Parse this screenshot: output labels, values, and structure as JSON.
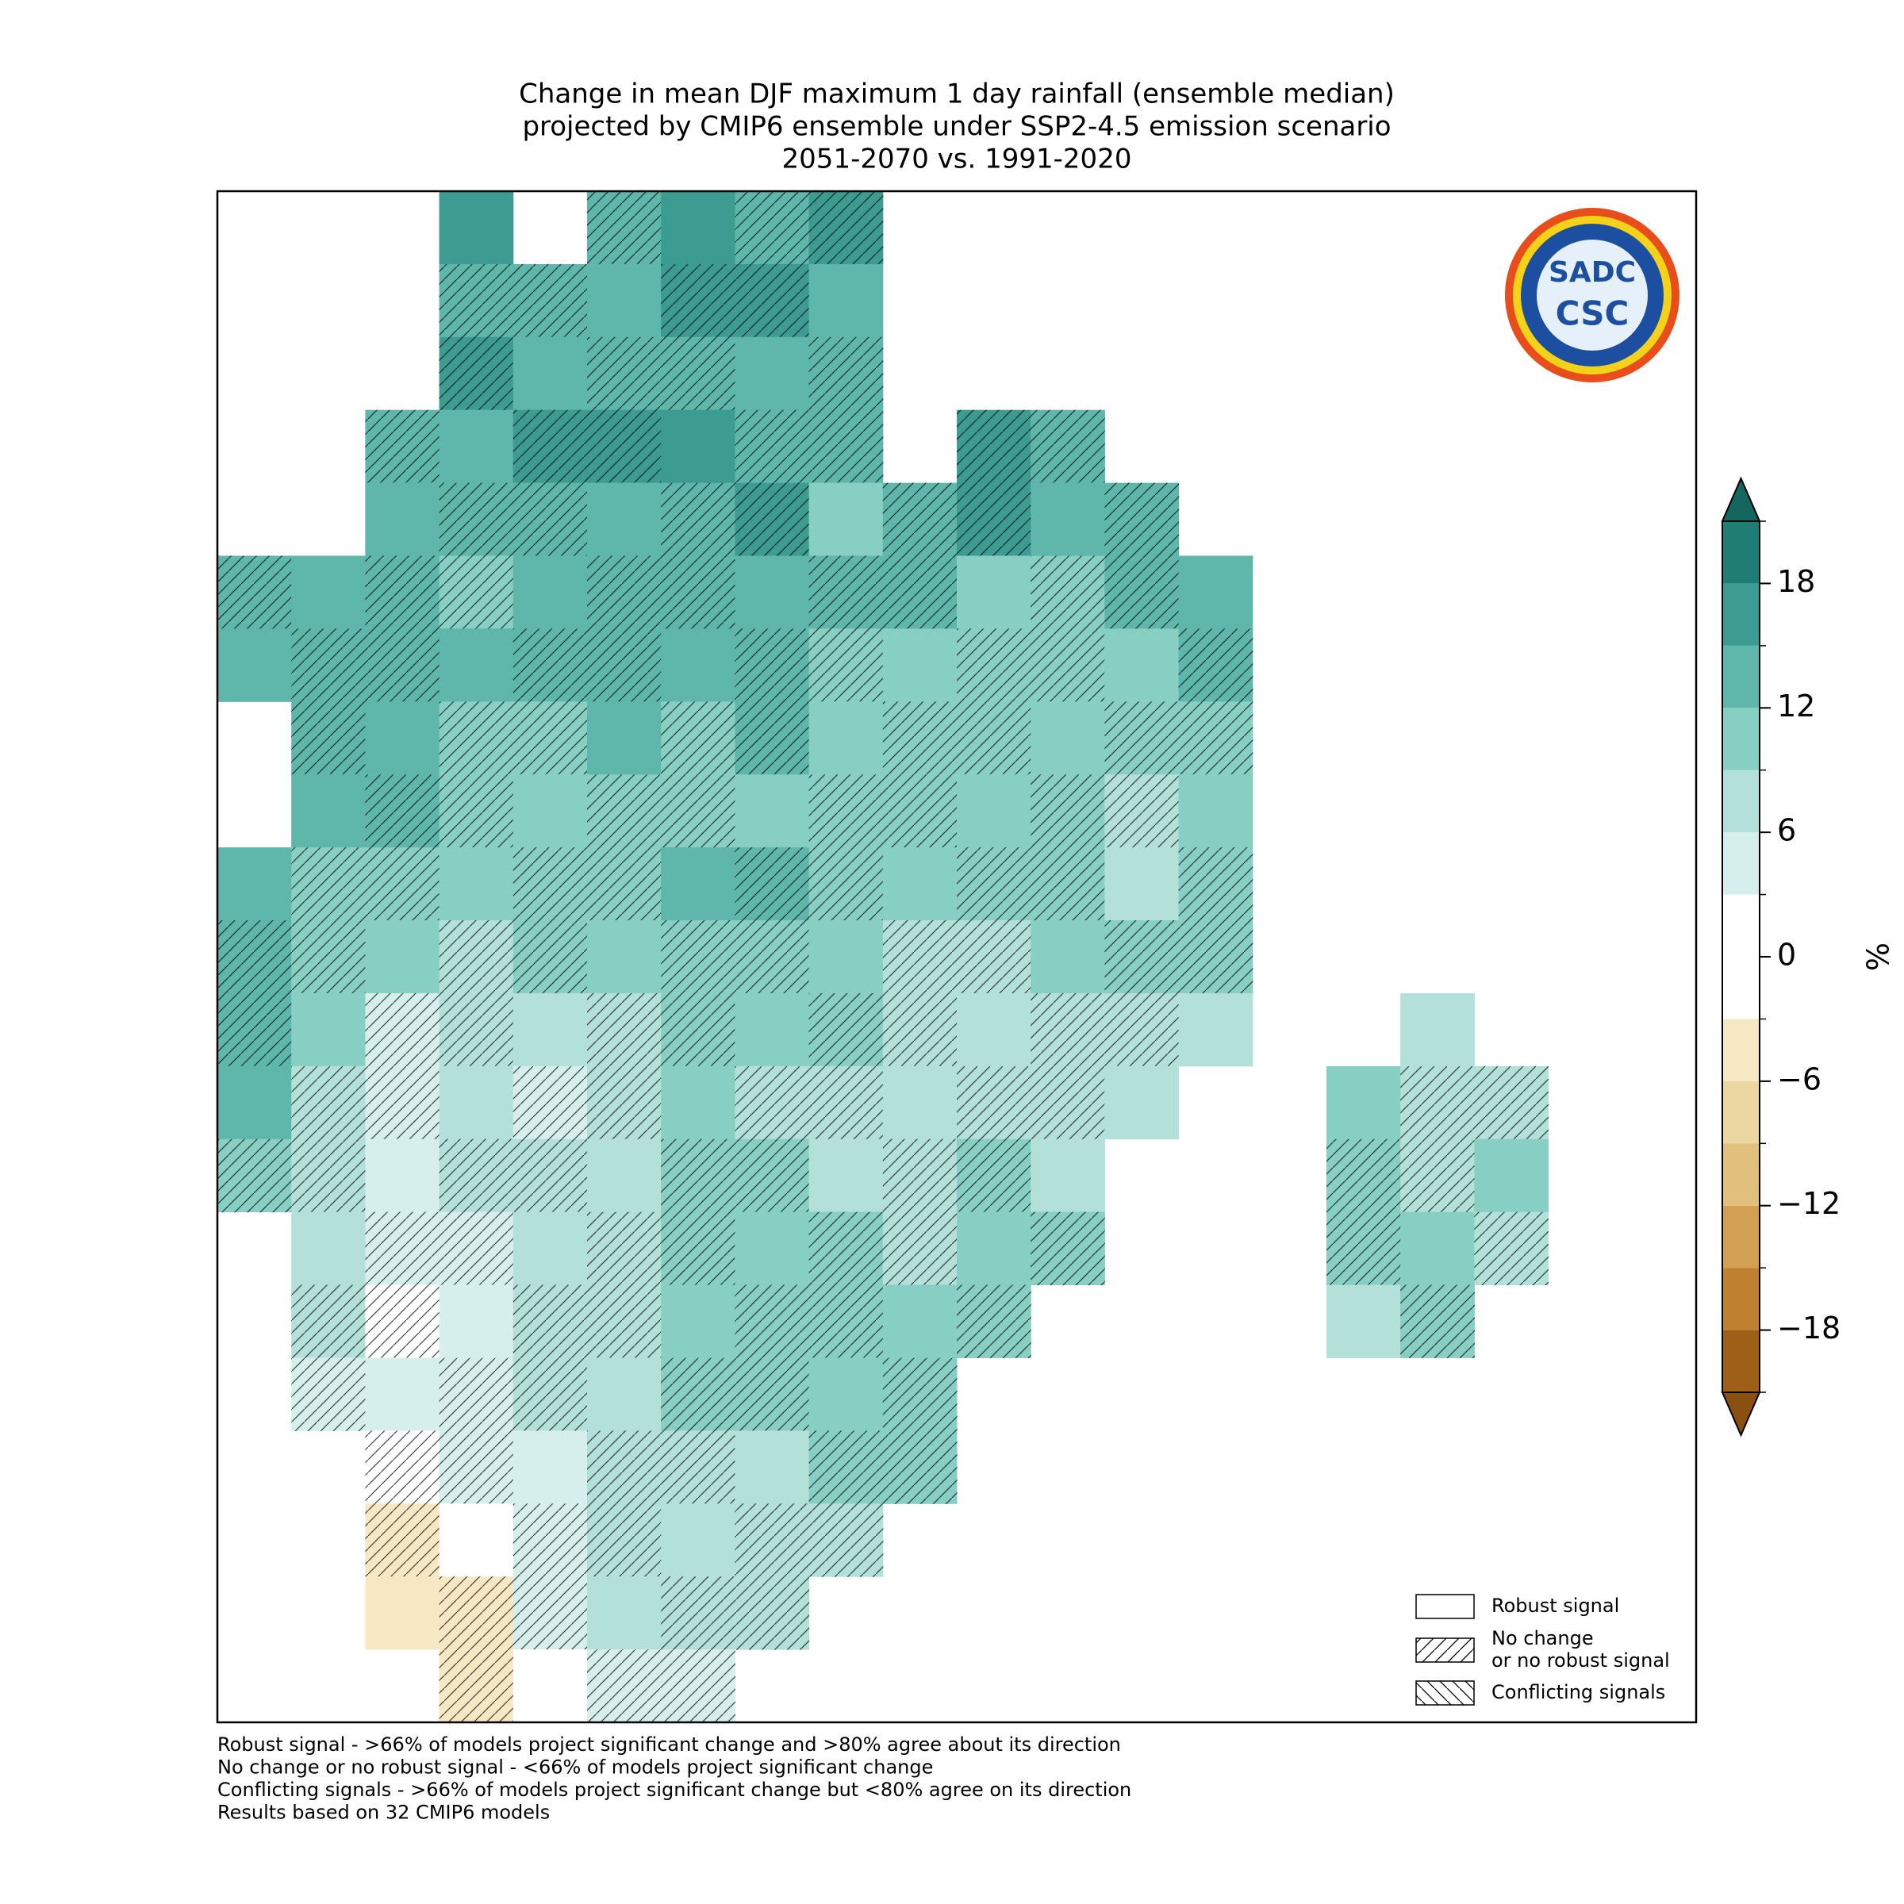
{
  "chart_data": {
    "type": "map",
    "title": [
      "Change in mean DJF maximum 1 day rainfall (ensemble median)",
      "projected by CMIP6 ensemble under SSP2-4.5 emission scenario",
      "2051-2070 vs. 1991-2020"
    ],
    "colorbar_label": "%",
    "levels": [
      -21,
      -18,
      -15,
      -12,
      -9,
      -6,
      -3,
      0,
      3,
      6,
      9,
      12,
      15,
      18,
      21
    ],
    "colors": [
      "#9e5f18",
      "#bf8130",
      "#d2a052",
      "#e0c07c",
      "#ecd7a2",
      "#f6e8c3",
      "#ffffff",
      "#ffffff",
      "#d6efec",
      "#b3e0d8",
      "#86cfc2",
      "#5fb6aa",
      "#3d9c91",
      "#1f7d73"
    ],
    "extend_colors": [
      "#8a5012",
      "#15665e"
    ],
    "cticks": [
      {
        "value": -18,
        "label": "−18"
      },
      {
        "value": -12,
        "label": "−12"
      },
      {
        "value": -6,
        "label": "−6"
      },
      0,
      6,
      12,
      18
    ],
    "clim": [
      -21,
      21
    ],
    "map": {
      "values": [
        [
          null,
          null,
          null,
          15,
          null,
          12,
          15,
          12,
          16,
          null,
          null,
          null,
          null,
          null,
          null,
          null,
          null,
          null,
          null,
          null
        ],
        [
          null,
          null,
          null,
          14,
          14,
          14,
          17,
          16,
          13,
          null,
          null,
          null,
          null,
          null,
          null,
          null,
          null,
          null,
          null,
          null
        ],
        [
          null,
          null,
          null,
          15,
          14,
          13,
          14,
          14,
          12,
          null,
          null,
          null,
          null,
          null,
          null,
          null,
          null,
          null,
          null,
          null
        ],
        [
          null,
          null,
          12,
          13,
          15,
          15,
          16,
          14,
          12,
          null,
          16,
          12,
          null,
          null,
          null,
          null,
          null,
          null,
          null,
          null
        ],
        [
          null,
          null,
          13,
          12,
          12,
          14,
          14,
          16,
          11,
          12,
          16,
          14,
          12,
          null,
          null,
          null,
          null,
          null,
          null,
          null
        ],
        [
          14,
          14,
          13,
          11,
          13,
          13,
          14,
          14,
          13,
          13,
          11,
          11,
          12,
          14,
          null,
          null,
          null,
          null,
          null,
          null
        ],
        [
          13,
          14,
          14,
          14,
          14,
          14,
          12,
          13,
          11,
          11,
          10,
          9,
          10,
          14,
          null,
          null,
          null,
          null,
          null,
          null
        ],
        [
          null,
          14,
          13,
          10,
          10,
          13,
          11,
          12,
          11,
          11,
          10,
          9,
          9,
          10,
          null,
          null,
          null,
          null,
          null,
          null
        ],
        [
          null,
          13,
          12,
          11,
          10,
          11,
          11,
          10,
          10,
          10,
          10,
          9,
          8,
          10,
          null,
          null,
          null,
          null,
          null,
          null
        ],
        [
          14,
          11,
          11,
          9,
          10,
          11,
          12,
          12,
          10,
          10,
          10,
          9,
          8,
          9,
          null,
          null,
          null,
          null,
          null,
          null
        ],
        [
          14,
          10,
          10,
          7,
          9,
          10,
          11,
          10,
          10,
          8,
          8,
          9,
          10,
          9,
          null,
          null,
          null,
          null,
          null,
          null
        ],
        [
          14,
          9,
          4,
          6,
          7,
          8,
          9,
          9,
          9,
          8,
          8,
          7,
          8,
          8,
          null,
          null,
          8,
          null,
          null,
          null
        ],
        [
          12,
          7,
          3,
          7,
          5,
          8,
          9,
          8,
          8,
          8,
          8,
          7,
          8,
          null,
          null,
          9,
          7,
          8,
          null,
          null
        ],
        [
          11,
          8,
          4,
          6,
          7,
          8,
          9,
          9,
          8,
          6,
          9,
          7,
          null,
          null,
          null,
          9,
          6,
          9,
          null,
          null
        ],
        [
          null,
          7,
          4,
          5,
          6,
          8,
          9,
          9,
          9,
          8,
          9,
          9,
          null,
          null,
          null,
          9,
          9,
          6,
          null,
          null
        ],
        [
          null,
          6,
          2,
          4,
          7,
          8,
          9,
          10,
          11,
          9,
          10,
          null,
          null,
          null,
          null,
          8,
          9,
          null,
          null,
          null
        ],
        [
          null,
          5,
          3,
          5,
          6,
          7,
          9,
          10,
          9,
          9,
          null,
          null,
          null,
          null,
          null,
          null,
          null,
          null,
          null,
          null
        ],
        [
          null,
          null,
          -2,
          3,
          4,
          6,
          7,
          8,
          9,
          9,
          null,
          null,
          null,
          null,
          null,
          null,
          null,
          null,
          null,
          null
        ],
        [
          null,
          null,
          -6,
          -3,
          4,
          6,
          7,
          8,
          8,
          null,
          null,
          null,
          null,
          null,
          null,
          null,
          null,
          null,
          null,
          null
        ],
        [
          null,
          null,
          -4,
          -4,
          5,
          6,
          7,
          7,
          null,
          null,
          null,
          null,
          null,
          null,
          null,
          null,
          null,
          null,
          null,
          null
        ],
        [
          null,
          null,
          null,
          -6,
          -2,
          3,
          4,
          null,
          null,
          null,
          null,
          null,
          null,
          null,
          null,
          null,
          null,
          null,
          null,
          null
        ]
      ]
    },
    "legend": [
      {
        "label": [
          "Robust signal"
        ]
      },
      {
        "label": [
          "No change",
          "or no robust signal"
        ]
      },
      {
        "label": [
          "Conflicting signals"
        ]
      }
    ],
    "logo": [
      "SADC",
      "CSC"
    ],
    "footnotes": [
      "Robust signal - >66% of models project significant change and >80% agree about its direction",
      "No change or no robust signal - <66% of models project significant change",
      "Conflicting signals - >66% of models project significant change but <80% agree on its direction",
      "Results based on 32 CMIP6 models"
    ]
  }
}
